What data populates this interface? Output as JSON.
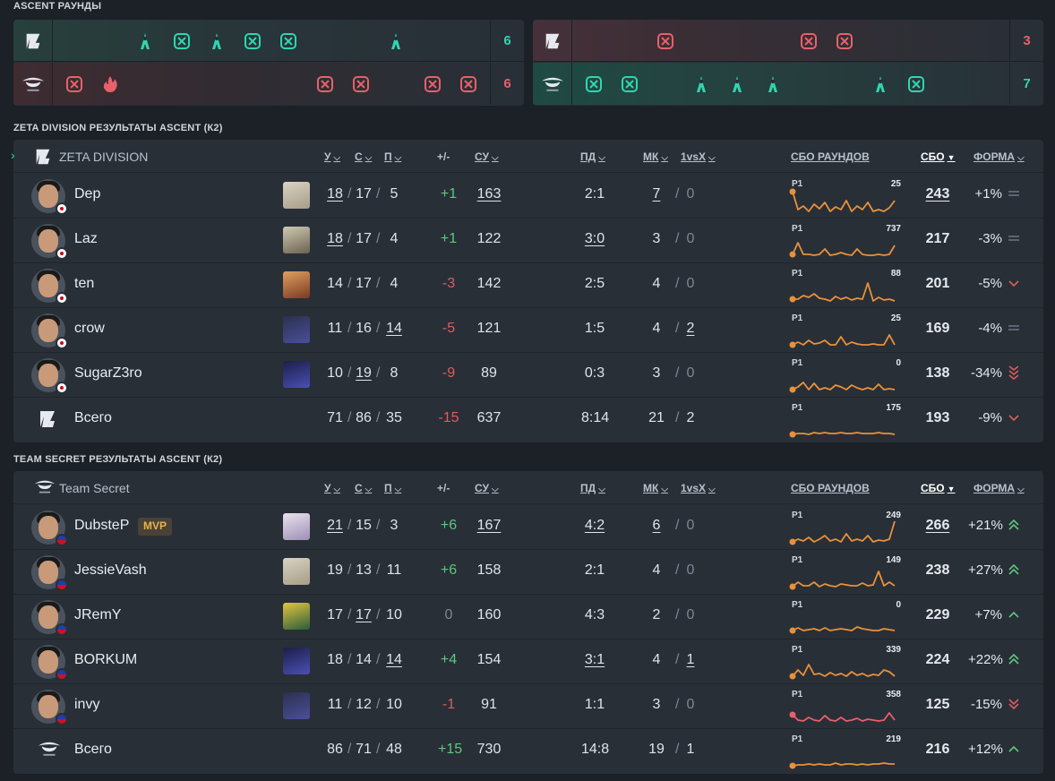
{
  "rounds": {
    "title": "ASCENT РАУНДЫ",
    "half1": {
      "top_score": "6",
      "bottom_score": "6"
    },
    "half2": {
      "top_score": "3",
      "bottom_score": "7"
    }
  },
  "teams": [
    {
      "section_title": "ZETA DIVISION РЕЗУЛЬТАТЫ ASCENT (К2)",
      "name": "ZETA DIVISION",
      "players": [
        {
          "name": "Dep",
          "agent": "sage-agent-icon",
          "k": "18",
          "d": "17",
          "a": "5",
          "pm": "+1",
          "pm_class": "pos",
          "su": "163",
          "pd": "2:1",
          "mk": "7",
          "vx": "0",
          "spark_max": "25",
          "sbo": "243",
          "forma": "+1%",
          "trend": "flat"
        },
        {
          "name": "Laz",
          "agent": "cypher-agent-icon",
          "k": "18",
          "d": "17",
          "a": "4",
          "pm": "+1",
          "pm_class": "pos",
          "su": "122",
          "pd": "3:0",
          "mk": "3",
          "vx": "0",
          "spark_max": "737",
          "sbo": "217",
          "forma": "-3%",
          "trend": "flat"
        },
        {
          "name": "ten",
          "agent": "phoenix-agent-icon",
          "k": "14",
          "d": "17",
          "a": "4",
          "pm": "-3",
          "pm_class": "neg",
          "su": "142",
          "pd": "2:5",
          "mk": "4",
          "vx": "0",
          "spark_max": "88",
          "sbo": "201",
          "forma": "-5%",
          "trend": "down"
        },
        {
          "name": "crow",
          "agent": "jett-agent-icon",
          "k": "11",
          "d": "16",
          "a": "14",
          "pm": "-5",
          "pm_class": "neg",
          "su": "121",
          "pd": "1:5",
          "mk": "4",
          "vx": "2",
          "spark_max": "25",
          "sbo": "169",
          "forma": "-4%",
          "trend": "flat"
        },
        {
          "name": "SugarZ3ro",
          "agent": "omen-agent-icon",
          "k": "10",
          "d": "19",
          "a": "8",
          "pm": "-9",
          "pm_class": "neg",
          "su": "89",
          "pd": "0:3",
          "mk": "3",
          "vx": "0",
          "spark_max": "0",
          "sbo": "138",
          "forma": "-34%",
          "trend": "down3"
        }
      ],
      "total": {
        "label": "Всего",
        "k": "71",
        "d": "86",
        "a": "35",
        "pm": "-15",
        "pm_class": "neg",
        "su": "637",
        "pd": "8:14",
        "mk": "21",
        "vx": "2",
        "spark_max": "175",
        "sbo": "193",
        "forma": "-9%",
        "trend": "down"
      }
    },
    {
      "section_title": "TEAM SECRET РЕЗУЛЬТАТЫ ASCENT (К2)",
      "name": "Team Secret",
      "players": [
        {
          "name": "DubsteP",
          "mvp": "MVP",
          "agent": "reyna-agent-icon",
          "k": "21",
          "d": "15",
          "a": "3",
          "pm": "+6",
          "pm_class": "pos",
          "su": "167",
          "pd": "4:2",
          "mk": "6",
          "vx": "0",
          "spark_max": "249",
          "sbo": "266",
          "forma": "+21%",
          "trend": "up2"
        },
        {
          "name": "JessieVash",
          "agent": "sage-agent-icon",
          "k": "19",
          "d": "13",
          "a": "11",
          "pm": "+6",
          "pm_class": "pos",
          "su": "158",
          "pd": "2:1",
          "mk": "4",
          "vx": "0",
          "spark_max": "149",
          "sbo": "238",
          "forma": "+27%",
          "trend": "up2"
        },
        {
          "name": "JRemY",
          "agent": "killjoy-agent-icon",
          "k": "17",
          "d": "17",
          "a": "10",
          "pm": "0",
          "pm_class": "zero",
          "su": "160",
          "pd": "4:3",
          "mk": "2",
          "vx": "0",
          "spark_max": "0",
          "sbo": "229",
          "forma": "+7%",
          "trend": "up"
        },
        {
          "name": "BORKUM",
          "agent": "omen-agent-icon",
          "k": "18",
          "d": "14",
          "a": "14",
          "pm": "+4",
          "pm_class": "pos",
          "su": "154",
          "pd": "3:1",
          "mk": "4",
          "vx": "1",
          "spark_max": "339",
          "sbo": "224",
          "forma": "+22%",
          "trend": "up2"
        },
        {
          "name": "invy",
          "agent": "jett-agent-icon",
          "k": "11",
          "d": "12",
          "a": "10",
          "pm": "-1",
          "pm_class": "neg",
          "su": "91",
          "pd": "1:1",
          "mk": "3",
          "vx": "0",
          "spark_max": "358",
          "sbo": "125",
          "forma": "-15%",
          "trend": "down2"
        }
      ],
      "total": {
        "label": "Всего",
        "k": "86",
        "d": "71",
        "a": "48",
        "pm": "+15",
        "pm_class": "pos",
        "su": "730",
        "pd": "14:8",
        "mk": "19",
        "vx": "1",
        "spark_max": "219",
        "sbo": "216",
        "forma": "+12%",
        "trend": "up"
      }
    }
  ],
  "headers": {
    "k": "У",
    "d": "С",
    "a": "П",
    "pm": "+/-",
    "su": "СУ",
    "pd": "ПД",
    "mk": "МК",
    "vx": "1vsX",
    "sbo_rounds": "СБО РАУНДОВ",
    "sbo": "СБО",
    "forma": "ФОРМА",
    "r1": "Р1"
  },
  "colors": {
    "teal": "#2fd6b0",
    "red": "#e8606a",
    "orange": "#e8913a",
    "bg": "#1c2127",
    "panel": "#282f37"
  }
}
